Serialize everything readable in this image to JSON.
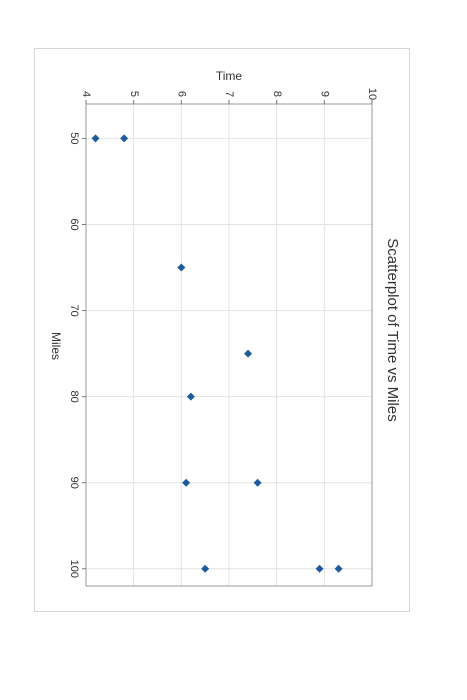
{
  "chart_data": {
    "type": "scatter",
    "title": "Scatterplot of Time vs Miles",
    "xlabel": "Miles",
    "ylabel": "Time",
    "xlim": [
      46,
      102
    ],
    "ylim": [
      4,
      10
    ],
    "x_ticks": [
      "50",
      "60",
      "70",
      "80",
      "90",
      "100"
    ],
    "y_ticks": [
      "4",
      "5",
      "6",
      "7",
      "8",
      "9",
      "10"
    ],
    "grid": true,
    "orientation": "rotated-90-clockwise",
    "marker_color": "#1f5b9c",
    "points": [
      {
        "x": 50,
        "y": 4.2
      },
      {
        "x": 50,
        "y": 4.8
      },
      {
        "x": 65,
        "y": 6.0
      },
      {
        "x": 75,
        "y": 7.4
      },
      {
        "x": 80,
        "y": 6.2
      },
      {
        "x": 90,
        "y": 6.1
      },
      {
        "x": 90,
        "y": 7.6
      },
      {
        "x": 100,
        "y": 6.5
      },
      {
        "x": 100,
        "y": 8.9
      },
      {
        "x": 100,
        "y": 9.3
      }
    ]
  }
}
